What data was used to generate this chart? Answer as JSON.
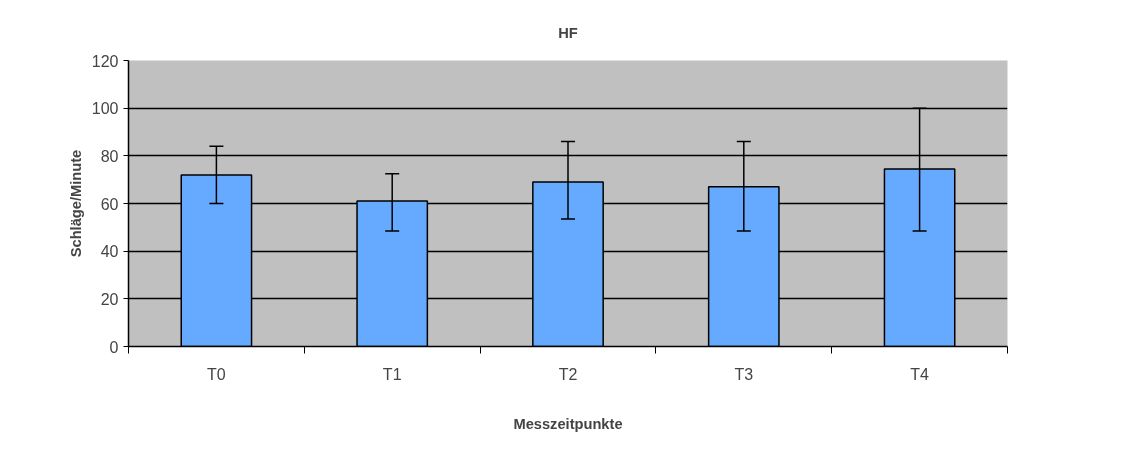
{
  "chart_data": {
    "type": "bar",
    "title": "HF",
    "xlabel": "Messzeitpunkte",
    "ylabel": "Schläge/Minute",
    "categories": [
      "T0",
      "T1",
      "T2",
      "T3",
      "T4"
    ],
    "values": [
      72,
      61,
      69,
      67,
      74.5
    ],
    "errors": [
      [
        60,
        84
      ],
      [
        48.5,
        72.5
      ],
      [
        53.5,
        86
      ],
      [
        48.5,
        86
      ],
      [
        48.5,
        100
      ]
    ],
    "color": "#66aaff",
    "ylim": [
      0,
      120
    ],
    "yticks": [
      0,
      20,
      40,
      60,
      80,
      100,
      120
    ],
    "grid": "y"
  }
}
